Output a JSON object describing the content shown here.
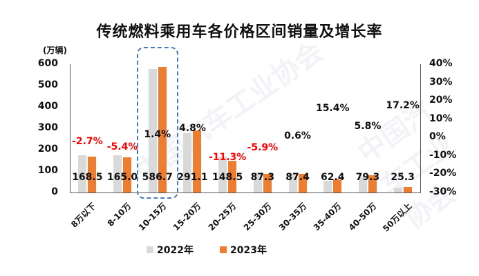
{
  "chart_data": {
    "type": "bar",
    "title": "传统燃料乘用车各价格区间销量及增长率",
    "ylabel": "(万辆)",
    "ylim": [
      0,
      600
    ],
    "yticks": [
      "600",
      "500",
      "400",
      "300",
      "200",
      "100",
      "0"
    ],
    "y2lim": [
      -30,
      40
    ],
    "y2ticks": [
      "40%",
      "30%",
      "20%",
      "10%",
      "0%",
      "-10%",
      "-20%",
      "-30%"
    ],
    "categories": [
      "8万以下",
      "8-10万",
      "10-15万",
      "15-20万",
      "20-25万",
      "25-30万",
      "30-35万",
      "35-40万",
      "40-50万",
      "50万以上"
    ],
    "series": [
      {
        "name": "2022年",
        "color": "#d9d9d9",
        "values": [
          173.2,
          174.4,
          578.6,
          277.8,
          167.4,
          92.8,
          86.9,
          54.1,
          75.0,
          21.6
        ]
      },
      {
        "name": "2023年",
        "color": "#ed7d31",
        "values": [
          168.5,
          165.0,
          586.7,
          291.1,
          148.5,
          87.3,
          87.4,
          62.4,
          79.3,
          25.3
        ]
      }
    ],
    "value_labels": [
      "168.5",
      "165.0",
      "586.7",
      "291.1",
      "148.5",
      "87.3",
      "87.4",
      "62.4",
      "79.3",
      "25.3"
    ],
    "growth_rate": {
      "name": "增长率",
      "values": [
        -2.7,
        -5.4,
        1.4,
        4.8,
        -11.3,
        -5.9,
        0.6,
        15.4,
        5.8,
        17.2
      ],
      "labels": [
        "-2.7%",
        "-5.4%",
        "1.4%",
        "4.8%",
        "-11.3%",
        "-5.9%",
        "0.6%",
        "15.4%",
        "5.8%",
        "17.2%"
      ],
      "negative_color": "#ff0000",
      "positive_color": "#111111"
    },
    "highlighted_category": "10-15万",
    "legend": [
      "2022年",
      "2023年"
    ],
    "legend_position": "bottom",
    "grid": false
  },
  "watermark": "中国汽车工业协会"
}
